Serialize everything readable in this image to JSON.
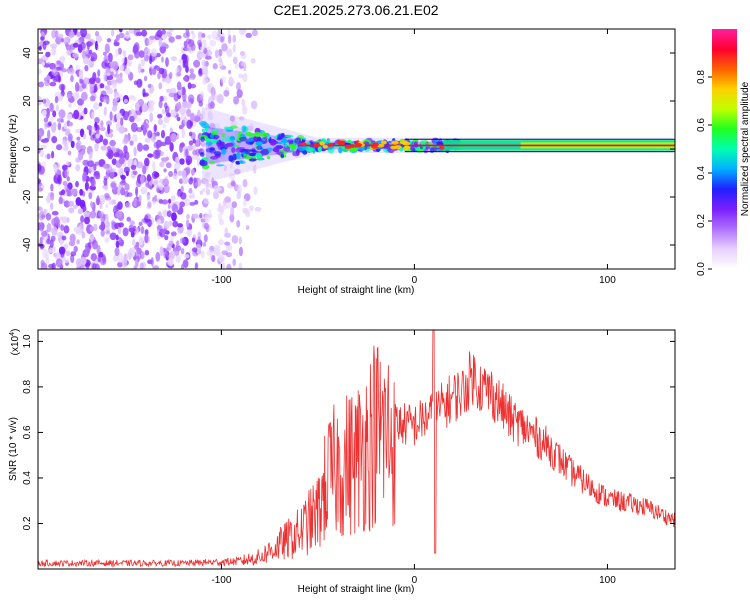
{
  "chart_data": [
    {
      "type": "heatmap",
      "title": "C2E1.2025.273.06.21.E02",
      "xlabel": "Height of straight line (km)",
      "ylabel": "Frequency (Hz)",
      "xlim": [
        -195,
        135
      ],
      "ylim": [
        -50,
        50
      ],
      "xticks": [
        -100,
        0,
        100
      ],
      "yticks": [
        -40,
        -20,
        0,
        20,
        40
      ],
      "colorbar": {
        "label": "Normalized spectral amplitude",
        "range": [
          0,
          1
        ],
        "ticks": [
          "0.0",
          "0.2",
          "0.4",
          "0.6",
          "0.8"
        ],
        "colors": [
          "#ffffff",
          "#e8d0ff",
          "#b070ff",
          "#7a1fff",
          "#2020ff",
          "#00b0ff",
          "#00ffb0",
          "#20ff20",
          "#c0ff00",
          "#ffd000",
          "#ff6000",
          "#ff0030",
          "#ff20a0"
        ]
      },
      "noise_region_x": [
        -195,
        -80
      ],
      "signal_band": {
        "start_x": -110,
        "center_freq": 1.5,
        "half_width_at_start": 10,
        "half_width_at_end": 2
      }
    },
    {
      "type": "line",
      "xlabel": "Height of straight line (km)",
      "ylabel": "SNR (10 * v/v)",
      "y_multiplier": "(x10",
      "y_multiplier_exp": "4",
      "xlim": [
        -195,
        135
      ],
      "ylim": [
        0,
        1.05
      ],
      "xticks": [
        -100,
        0,
        100
      ],
      "yticks": [
        0.2,
        0.4,
        0.6,
        0.8,
        1.0
      ],
      "ytick_labels": [
        "0.2",
        "0.4",
        "0.6",
        "0.8",
        "1.0"
      ],
      "color": "#ee3030",
      "envelope": {
        "x": [
          -195,
          -120,
          -90,
          -80,
          -70,
          -60,
          -50,
          -45,
          -40,
          -30,
          -20,
          -10,
          0,
          5,
          10,
          20,
          25,
          30,
          35,
          40,
          50,
          60,
          70,
          80,
          90,
          100,
          110,
          120,
          135
        ],
        "y": [
          0.03,
          0.03,
          0.04,
          0.06,
          0.12,
          0.18,
          0.28,
          0.45,
          0.5,
          0.55,
          0.7,
          0.66,
          0.65,
          0.68,
          0.7,
          0.78,
          0.8,
          0.88,
          0.82,
          0.8,
          0.68,
          0.62,
          0.55,
          0.45,
          0.38,
          0.32,
          0.3,
          0.28,
          0.22
        ]
      }
    }
  ]
}
